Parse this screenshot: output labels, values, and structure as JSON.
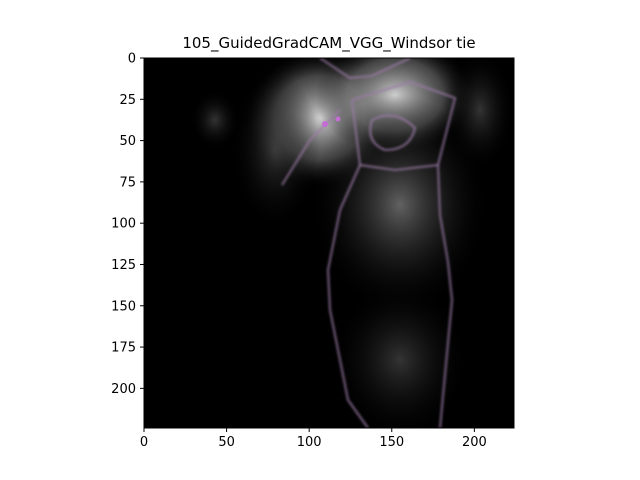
{
  "chart_data": {
    "type": "heatmap",
    "title": "105_GuidedGradCAM_VGG_Windsor tie",
    "xlabel": "",
    "ylabel": "",
    "image_size": [
      224,
      224
    ],
    "xlim": [
      0,
      224
    ],
    "ylim": [
      224,
      0
    ],
    "x_ticks": [
      0,
      50,
      100,
      150,
      200
    ],
    "y_ticks": [
      0,
      25,
      50,
      75,
      100,
      125,
      150,
      175,
      200
    ],
    "grid": false,
    "legend": "none",
    "colors": {
      "background": "#000000",
      "glow": "#bdbdbd",
      "outline": "#9a7aa6",
      "highlight": "#c46bd6"
    }
  }
}
